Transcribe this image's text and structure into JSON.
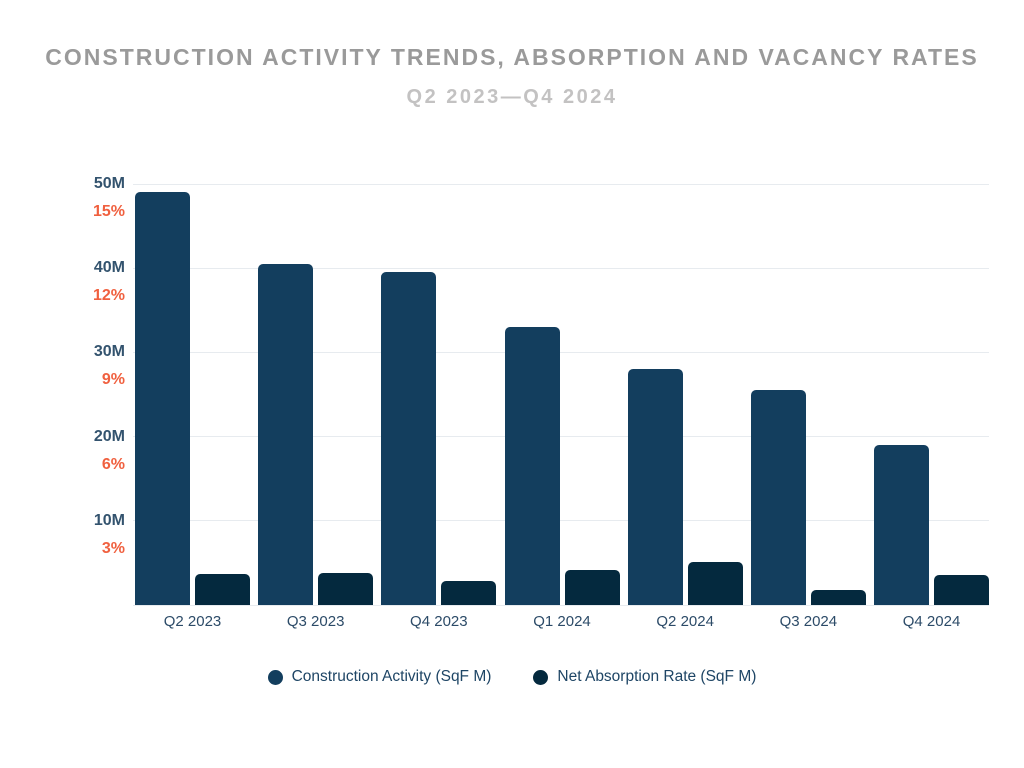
{
  "chart_data": {
    "type": "bar",
    "title": "CONSTRUCTION ACTIVITY TRENDS, ABSORPTION AND VACANCY RATES",
    "subtitle": "Q2 2023—Q4 2024",
    "categories": [
      "Q2 2023",
      "Q3 2023",
      "Q4 2023",
      "Q1 2024",
      "Q2 2024",
      "Q3 2024",
      "Q4 2024"
    ],
    "series": [
      {
        "name": "Construction Activity (SqF M)",
        "color": "#133e5e",
        "values": [
          49,
          40.5,
          39.5,
          33,
          28,
          25.5,
          19
        ]
      },
      {
        "name": "Net Absorption Rate (SqF M)",
        "color": "#04293e",
        "values": [
          3.7,
          3.8,
          2.9,
          4.2,
          5.1,
          1.8,
          3.6
        ]
      }
    ],
    "ylim": [
      0,
      50
    ],
    "grid": true,
    "legend_position": "bottom",
    "left_axis": {
      "ticks": [
        {
          "value": 50,
          "m_label": "50M",
          "pct_label": "15%"
        },
        {
          "value": 40,
          "m_label": "40M",
          "pct_label": "12%"
        },
        {
          "value": 30,
          "m_label": "30M",
          "pct_label": "9%"
        },
        {
          "value": 20,
          "m_label": "20M",
          "pct_label": "6%"
        },
        {
          "value": 10,
          "m_label": "10M",
          "pct_label": "3%"
        }
      ]
    },
    "colors": {
      "background": "#ffffff",
      "title": "#9a9a9a",
      "subtitle": "#c3c2c2",
      "m_tick": "#33536e",
      "pct_tick": "#f0603f",
      "x_tick": "#2c4b68",
      "legend_text": "#1e4565",
      "gridline": "#e7ebef"
    }
  }
}
